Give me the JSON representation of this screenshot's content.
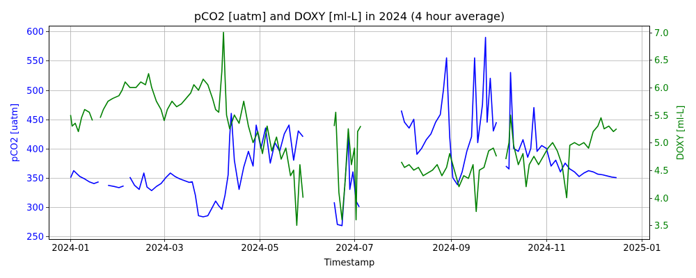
{
  "chart_data": {
    "type": "line",
    "title": "pCO2 [uatm] and DOXY [ml-L] in 2024 (4 hour average)",
    "xlabel": "Timestamp",
    "ylabel_left": "pCO2 [uatm]",
    "ylabel_right": "DOXY [ml-L]",
    "grid": true,
    "xlim": [
      "2023-12-18",
      "2025-01-06"
    ],
    "ylim_left": [
      245,
      610
    ],
    "ylim_right": [
      3.25,
      7.12
    ],
    "x_ticks": [
      "2024-01",
      "2024-03",
      "2024-05",
      "2024-07",
      "2024-09",
      "2024-11",
      "2025-01"
    ],
    "y_ticks_left": [
      250,
      300,
      350,
      400,
      450,
      500,
      550,
      600
    ],
    "y_ticks_right": [
      3.5,
      4.0,
      4.5,
      5.0,
      5.5,
      6.0,
      6.5,
      7.0
    ],
    "colors": {
      "pco2": "#0000ff",
      "doxy": "#008000",
      "grid": "#b0b0b0"
    },
    "series": [
      {
        "axis": "left",
        "segments": [
          [
            [
              "2024-01-01",
              350
            ],
            [
              "2024-01-03",
              362
            ],
            [
              "2024-01-05",
              357
            ],
            [
              "2024-01-07",
              352
            ],
            [
              "2024-01-10",
              348
            ],
            [
              "2024-01-13",
              343
            ],
            [
              "2024-01-16",
              340
            ],
            [
              "2024-01-19",
              343
            ]
          ],
          [
            [
              "2024-01-25",
              337
            ],
            [
              "2024-01-29",
              335
            ],
            [
              "2024-02-01",
              333
            ],
            [
              "2024-02-04",
              336
            ]
          ],
          [
            [
              "2024-02-08",
              351
            ],
            [
              "2024-02-11",
              337
            ],
            [
              "2024-02-14",
              330
            ],
            [
              "2024-02-17",
              358
            ],
            [
              "2024-02-19",
              334
            ],
            [
              "2024-02-22",
              328
            ],
            [
              "2024-02-25",
              335
            ],
            [
              "2024-02-28",
              340
            ],
            [
              "2024-03-02",
              350
            ],
            [
              "2024-03-05",
              358
            ],
            [
              "2024-03-08",
              352
            ],
            [
              "2024-03-11",
              348
            ],
            [
              "2024-03-14",
              345
            ],
            [
              "2024-03-17",
              342
            ],
            [
              "2024-03-19",
              343
            ],
            [
              "2024-03-21",
              320
            ],
            [
              "2024-03-23",
              285
            ],
            [
              "2024-03-26",
              283
            ],
            [
              "2024-03-29",
              285
            ],
            [
              "2024-04-01",
              300
            ],
            [
              "2024-04-03",
              310
            ],
            [
              "2024-04-05",
              302
            ],
            [
              "2024-04-07",
              296
            ],
            [
              "2024-04-09",
              320
            ],
            [
              "2024-04-11",
              355
            ],
            [
              "2024-04-12",
              420
            ],
            [
              "2024-04-13",
              460
            ],
            [
              "2024-04-15",
              380
            ],
            [
              "2024-04-18",
              330
            ],
            [
              "2024-04-21",
              368
            ],
            [
              "2024-04-24",
              395
            ],
            [
              "2024-04-27",
              370
            ],
            [
              "2024-04-29",
              440
            ],
            [
              "2024-05-02",
              400
            ],
            [
              "2024-05-05",
              435
            ],
            [
              "2024-05-08",
              375
            ],
            [
              "2024-05-11",
              410
            ],
            [
              "2024-05-14",
              395
            ],
            [
              "2024-05-17",
              425
            ],
            [
              "2024-05-20",
              440
            ],
            [
              "2024-05-23",
              380
            ],
            [
              "2024-05-26",
              430
            ],
            [
              "2024-05-29",
              420
            ]
          ],
          [
            [
              "2024-06-18",
              308
            ],
            [
              "2024-06-20",
              270
            ],
            [
              "2024-06-23",
              268
            ],
            [
              "2024-06-25",
              345
            ],
            [
              "2024-06-27",
              420
            ],
            [
              "2024-06-28",
              330
            ],
            [
              "2024-06-30",
              360
            ],
            [
              "2024-07-02",
              310
            ],
            [
              "2024-07-04",
              300
            ]
          ],
          [
            [
              "2024-07-31",
              465
            ],
            [
              "2024-08-02",
              445
            ],
            [
              "2024-08-05",
              435
            ],
            [
              "2024-08-08",
              450
            ],
            [
              "2024-08-10",
              390
            ],
            [
              "2024-08-13",
              400
            ],
            [
              "2024-08-16",
              415
            ],
            [
              "2024-08-19",
              425
            ],
            [
              "2024-08-22",
              445
            ],
            [
              "2024-08-25",
              458
            ],
            [
              "2024-08-27",
              500
            ],
            [
              "2024-08-29",
              555
            ],
            [
              "2024-08-31",
              420
            ],
            [
              "2024-09-02",
              350
            ],
            [
              "2024-09-05",
              338
            ],
            [
              "2024-09-08",
              360
            ],
            [
              "2024-09-11",
              395
            ],
            [
              "2024-09-14",
              420
            ],
            [
              "2024-09-16",
              555
            ],
            [
              "2024-09-18",
              410
            ],
            [
              "2024-09-21",
              475
            ],
            [
              "2024-09-23",
              590
            ],
            [
              "2024-09-24",
              445
            ],
            [
              "2024-09-26",
              520
            ],
            [
              "2024-09-28",
              430
            ],
            [
              "2024-09-30",
              445
            ]
          ],
          [
            [
              "2024-10-06",
              370
            ],
            [
              "2024-10-08",
              365
            ],
            [
              "2024-10-09",
              530
            ],
            [
              "2024-10-11",
              400
            ],
            [
              "2024-10-14",
              395
            ],
            [
              "2024-10-17",
              415
            ],
            [
              "2024-10-20",
              385
            ],
            [
              "2024-10-22",
              400
            ],
            [
              "2024-10-24",
              470
            ],
            [
              "2024-10-26",
              395
            ],
            [
              "2024-10-29",
              405
            ],
            [
              "2024-11-01",
              400
            ],
            [
              "2024-11-04",
              370
            ],
            [
              "2024-11-07",
              380
            ],
            [
              "2024-11-10",
              360
            ],
            [
              "2024-11-13",
              375
            ],
            [
              "2024-11-16",
              365
            ],
            [
              "2024-11-19",
              360
            ],
            [
              "2024-11-22",
              352
            ],
            [
              "2024-11-25",
              358
            ],
            [
              "2024-11-28",
              362
            ],
            [
              "2024-12-01",
              360
            ],
            [
              "2024-12-04",
              356
            ],
            [
              "2024-12-07",
              355
            ],
            [
              "2024-12-10",
              353
            ],
            [
              "2024-12-13",
              351
            ],
            [
              "2024-12-16",
              350
            ]
          ]
        ]
      },
      {
        "axis": "right",
        "segments": [
          [
            [
              "2024-01-01",
              5.5
            ],
            [
              "2024-01-02",
              5.3
            ],
            [
              "2024-01-04",
              5.35
            ],
            [
              "2024-01-06",
              5.2
            ],
            [
              "2024-01-08",
              5.45
            ],
            [
              "2024-01-10",
              5.6
            ],
            [
              "2024-01-13",
              5.55
            ],
            [
              "2024-01-15",
              5.4
            ]
          ],
          [
            [
              "2024-01-20",
              5.45
            ],
            [
              "2024-01-22",
              5.6
            ],
            [
              "2024-01-25",
              5.75
            ],
            [
              "2024-01-28",
              5.8
            ],
            [
              "2024-02-01",
              5.85
            ],
            [
              "2024-02-03",
              5.95
            ],
            [
              "2024-02-05",
              6.1
            ],
            [
              "2024-02-08",
              6.0
            ],
            [
              "2024-02-12",
              6.0
            ],
            [
              "2024-02-15",
              6.1
            ],
            [
              "2024-02-18",
              6.05
            ],
            [
              "2024-02-20",
              6.25
            ],
            [
              "2024-02-22",
              6.0
            ],
            [
              "2024-02-25",
              5.75
            ],
            [
              "2024-02-28",
              5.6
            ],
            [
              "2024-03-01",
              5.4
            ],
            [
              "2024-03-03",
              5.6
            ],
            [
              "2024-03-06",
              5.75
            ],
            [
              "2024-03-09",
              5.65
            ],
            [
              "2024-03-12",
              5.7
            ],
            [
              "2024-03-15",
              5.8
            ],
            [
              "2024-03-18",
              5.9
            ],
            [
              "2024-03-20",
              6.05
            ],
            [
              "2024-03-23",
              5.95
            ],
            [
              "2024-03-26",
              6.15
            ],
            [
              "2024-03-29",
              6.05
            ],
            [
              "2024-04-01",
              5.8
            ],
            [
              "2024-04-03",
              5.6
            ],
            [
              "2024-04-05",
              5.55
            ],
            [
              "2024-04-07",
              6.3
            ],
            [
              "2024-04-08",
              7.0
            ],
            [
              "2024-04-09",
              6.2
            ],
            [
              "2024-04-10",
              5.5
            ],
            [
              "2024-04-12",
              5.25
            ],
            [
              "2024-04-15",
              5.5
            ],
            [
              "2024-04-18",
              5.35
            ],
            [
              "2024-04-21",
              5.75
            ],
            [
              "2024-04-24",
              5.3
            ],
            [
              "2024-04-27",
              5.0
            ],
            [
              "2024-04-30",
              5.2
            ],
            [
              "2024-05-03",
              4.8
            ],
            [
              "2024-05-06",
              5.3
            ],
            [
              "2024-05-09",
              4.85
            ],
            [
              "2024-05-12",
              5.1
            ],
            [
              "2024-05-15",
              4.7
            ],
            [
              "2024-05-18",
              4.9
            ],
            [
              "2024-05-21",
              4.4
            ],
            [
              "2024-05-23",
              4.5
            ],
            [
              "2024-05-25",
              3.5
            ],
            [
              "2024-05-27",
              4.6
            ],
            [
              "2024-05-29",
              4.0
            ]
          ],
          [
            [
              "2024-06-18",
              5.3
            ],
            [
              "2024-06-19",
              5.55
            ],
            [
              "2024-06-21",
              4.1
            ],
            [
              "2024-06-23",
              3.6
            ],
            [
              "2024-06-25",
              4.3
            ],
            [
              "2024-06-27",
              5.25
            ],
            [
              "2024-06-29",
              4.6
            ],
            [
              "2024-07-01",
              4.9
            ],
            [
              "2024-07-02",
              3.6
            ],
            [
              "2024-07-03",
              5.2
            ],
            [
              "2024-07-05",
              5.3
            ]
          ],
          [
            [
              "2024-07-31",
              4.65
            ],
            [
              "2024-08-02",
              4.55
            ],
            [
              "2024-08-05",
              4.6
            ],
            [
              "2024-08-08",
              4.5
            ],
            [
              "2024-08-11",
              4.55
            ],
            [
              "2024-08-14",
              4.4
            ],
            [
              "2024-08-17",
              4.45
            ],
            [
              "2024-08-20",
              4.5
            ],
            [
              "2024-08-23",
              4.6
            ],
            [
              "2024-08-26",
              4.4
            ],
            [
              "2024-08-29",
              4.55
            ],
            [
              "2024-08-31",
              4.8
            ],
            [
              "2024-09-03",
              4.5
            ],
            [
              "2024-09-06",
              4.2
            ],
            [
              "2024-09-09",
              4.4
            ],
            [
              "2024-09-12",
              4.35
            ],
            [
              "2024-09-15",
              4.6
            ],
            [
              "2024-09-17",
              3.75
            ],
            [
              "2024-09-19",
              4.5
            ],
            [
              "2024-09-22",
              4.55
            ],
            [
              "2024-09-25",
              4.85
            ],
            [
              "2024-09-28",
              4.9
            ],
            [
              "2024-09-30",
              4.75
            ]
          ],
          [
            [
              "2024-10-06",
              4.7
            ],
            [
              "2024-10-08",
              5.0
            ],
            [
              "2024-10-09",
              5.5
            ],
            [
              "2024-10-11",
              4.95
            ],
            [
              "2024-10-14",
              4.6
            ],
            [
              "2024-10-17",
              4.8
            ],
            [
              "2024-10-19",
              4.2
            ],
            [
              "2024-10-21",
              4.6
            ],
            [
              "2024-10-24",
              4.75
            ],
            [
              "2024-10-27",
              4.6
            ],
            [
              "2024-10-30",
              4.75
            ],
            [
              "2024-11-02",
              4.9
            ],
            [
              "2024-11-05",
              5.0
            ],
            [
              "2024-11-08",
              4.85
            ],
            [
              "2024-11-11",
              4.6
            ],
            [
              "2024-11-14",
              4.0
            ],
            [
              "2024-11-16",
              4.95
            ],
            [
              "2024-11-19",
              5.0
            ],
            [
              "2024-11-22",
              4.95
            ],
            [
              "2024-11-25",
              5.0
            ],
            [
              "2024-11-28",
              4.9
            ],
            [
              "2024-12-01",
              5.2
            ],
            [
              "2024-12-04",
              5.3
            ],
            [
              "2024-12-06",
              5.45
            ],
            [
              "2024-12-08",
              5.25
            ],
            [
              "2024-12-11",
              5.3
            ],
            [
              "2024-12-14",
              5.2
            ],
            [
              "2024-12-16",
              5.25
            ]
          ]
        ]
      }
    ]
  }
}
